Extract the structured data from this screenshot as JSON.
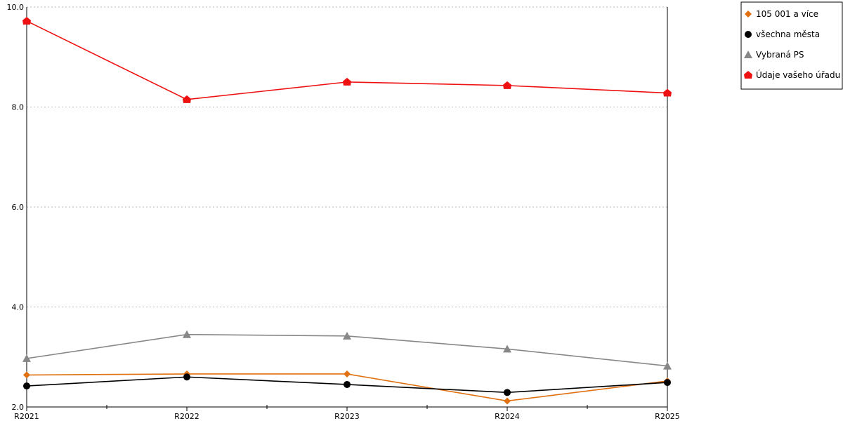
{
  "chart_data": {
    "type": "line",
    "title": "",
    "xlabel": "",
    "ylabel": "",
    "categories": [
      "R2021",
      "R2022",
      "R2023",
      "R2024",
      "R2025"
    ],
    "ylim": [
      2.0,
      10.0
    ],
    "yticks": [
      "2.0",
      "4.0",
      "6.0",
      "8.0",
      "10.0"
    ],
    "grid": "horizontal dotted",
    "legend_position": "top-right",
    "series": [
      {
        "name": "105 001 a více",
        "color": "#e07010",
        "marker": "diamond",
        "values": [
          2.64,
          2.66,
          2.66,
          2.12,
          2.52
        ]
      },
      {
        "name": "všechna města",
        "color": "#000000",
        "marker": "circle",
        "values": [
          2.42,
          2.6,
          2.45,
          2.29,
          2.49
        ]
      },
      {
        "name": "Vybraná PS",
        "color": "#888888",
        "marker": "triangle",
        "values": [
          2.97,
          3.45,
          3.42,
          3.16,
          2.82
        ]
      },
      {
        "name": "Údaje vašeho úřadu",
        "color": "#ee1111",
        "marker": "house",
        "values": [
          9.72,
          8.15,
          8.5,
          8.43,
          8.28
        ]
      }
    ]
  }
}
